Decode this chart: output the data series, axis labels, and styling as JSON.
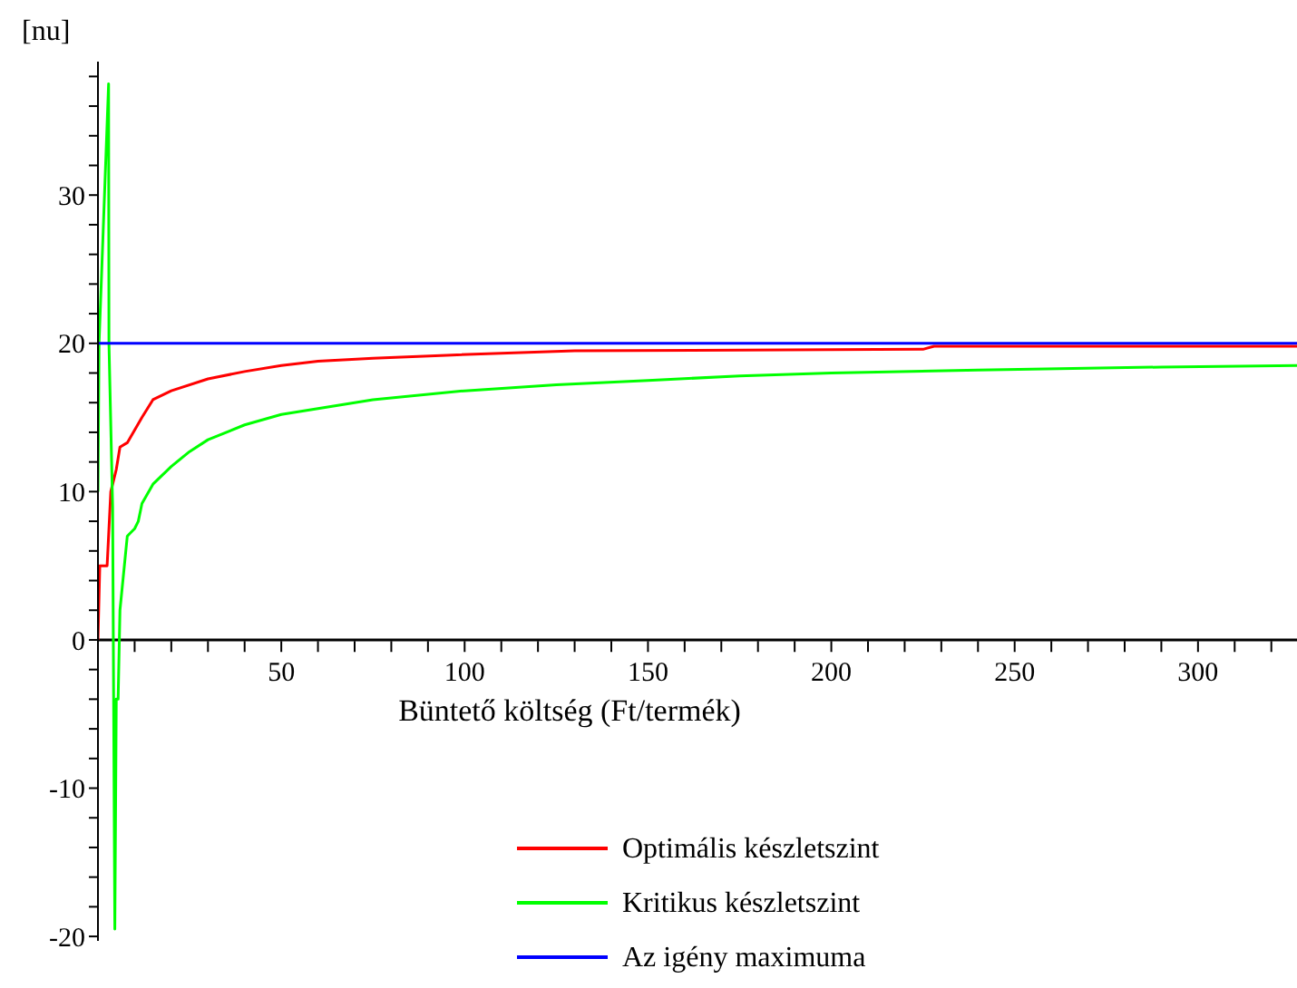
{
  "chart_data": {
    "type": "line",
    "xlabel": "Büntető költség (Ft/termék)",
    "ylabel": "[nu]",
    "xlim": [
      0,
      327
    ],
    "ylim": [
      -20.3,
      39
    ],
    "xticks": [
      {
        "value": 10,
        "label": null
      },
      {
        "value": 20,
        "label": null
      },
      {
        "value": 30,
        "label": null
      },
      {
        "value": 40,
        "label": null
      },
      50,
      {
        "value": 60,
        "label": null
      },
      {
        "value": 70,
        "label": null
      },
      {
        "value": 80,
        "label": null
      },
      {
        "value": 90,
        "label": null
      },
      100,
      {
        "value": 110,
        "label": null
      },
      {
        "value": 120,
        "label": null
      },
      {
        "value": 130,
        "label": null
      },
      {
        "value": 140,
        "label": null
      },
      150,
      {
        "value": 160,
        "label": null
      },
      {
        "value": 170,
        "label": null
      },
      {
        "value": 180,
        "label": null
      },
      {
        "value": 190,
        "label": null
      },
      200,
      {
        "value": 210,
        "label": null
      },
      {
        "value": 220,
        "label": null
      },
      {
        "value": 230,
        "label": null
      },
      {
        "value": 240,
        "label": null
      },
      250,
      {
        "value": 260,
        "label": null
      },
      {
        "value": 270,
        "label": null
      },
      {
        "value": 280,
        "label": null
      },
      {
        "value": 290,
        "label": null
      },
      300,
      {
        "value": 310,
        "label": null
      },
      {
        "value": 320,
        "label": null
      }
    ],
    "yticks": [
      -20,
      {
        "value": -18,
        "label": null
      },
      {
        "value": -16,
        "label": null
      },
      {
        "value": -14,
        "label": null
      },
      {
        "value": -12,
        "label": null
      },
      -10,
      {
        "value": -8,
        "label": null
      },
      {
        "value": -6,
        "label": null
      },
      {
        "value": -4,
        "label": null
      },
      {
        "value": -2,
        "label": null
      },
      0,
      {
        "value": 2,
        "label": null
      },
      {
        "value": 4,
        "label": null
      },
      {
        "value": 6,
        "label": null
      },
      {
        "value": 8,
        "label": null
      },
      10,
      {
        "value": 12,
        "label": null
      },
      {
        "value": 14,
        "label": null
      },
      {
        "value": 16,
        "label": null
      },
      {
        "value": 18,
        "label": null
      },
      20,
      {
        "value": 22,
        "label": null
      },
      {
        "value": 24,
        "label": null
      },
      {
        "value": 26,
        "label": null
      },
      {
        "value": 28,
        "label": null
      },
      30,
      {
        "value": 32,
        "label": null
      },
      {
        "value": 34,
        "label": null
      },
      {
        "value": 36,
        "label": null
      },
      {
        "value": 38,
        "label": null
      }
    ],
    "grid": false,
    "legend": "bottom",
    "marker": "none",
    "line_style": "solid",
    "series": [
      {
        "name": "Optimális készletszint",
        "color": "#ff0000",
        "x": [
          0,
          0.5,
          2.5,
          3.5,
          5,
          6,
          8,
          12,
          15,
          20,
          30,
          40,
          50,
          60,
          75,
          95,
          130,
          225,
          228,
          327
        ],
        "values": [
          0,
          5,
          5,
          10,
          11.5,
          13,
          13.3,
          15,
          16.2,
          16.8,
          17.6,
          18.1,
          18.5,
          18.8,
          19,
          19.2,
          19.5,
          19.6,
          19.8,
          19.8
        ]
      },
      {
        "name": "Kritikus készletszint",
        "color": "#00ff00",
        "x": [
          0,
          0.3,
          2.9,
          3,
          4,
          4.6,
          5,
          5.5,
          6,
          7,
          8,
          10,
          11,
          12,
          15,
          20,
          25,
          30,
          40,
          50,
          60,
          75,
          100,
          125,
          150,
          175,
          200,
          240,
          290,
          327
        ],
        "values": [
          10,
          20,
          37.5,
          20,
          9,
          -19.5,
          -4,
          -4,
          2,
          4.5,
          7,
          7.5,
          8,
          9.2,
          10.5,
          11.7,
          12.7,
          13.5,
          14.5,
          15.2,
          15.6,
          16.2,
          16.8,
          17.2,
          17.5,
          17.8,
          18,
          18.2,
          18.4,
          18.5
        ]
      },
      {
        "name": "Az igény maximuma",
        "color": "#0000ff",
        "x": [
          0,
          327
        ],
        "values": [
          20,
          20
        ]
      }
    ]
  }
}
